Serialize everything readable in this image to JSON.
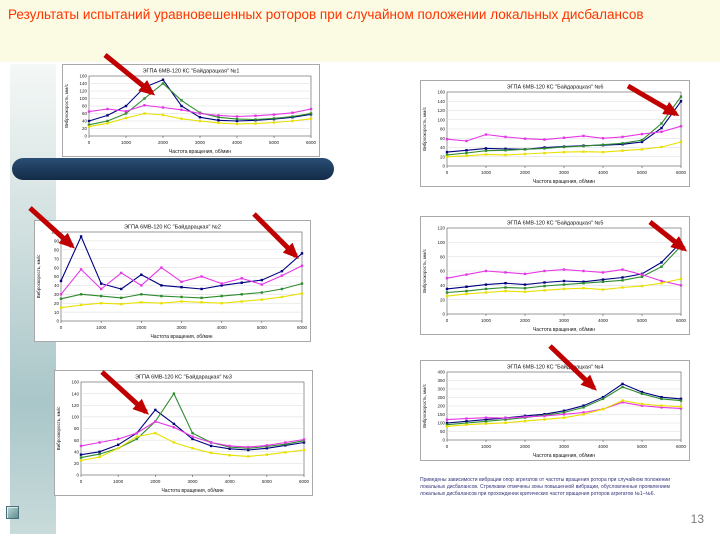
{
  "slide": {
    "title": "Результаты испытаний уравновешенных роторов при случайном положении локальных дисбалансов",
    "page_number": "13",
    "footnote": "Приведены зависимости вибрации опор агрегатов от частоты вращения ротора при случайном положении локальных дисбалансов. Стрелками отмечены зоны повышенной вибрации, обусловленные проявлением локальных дисбалансов при прохождении критических частот вращения роторов агрегатов №1–№6.",
    "accent_color": "#FF3300",
    "arrow_color": "#C00000"
  },
  "chart_data": [
    {
      "type": "line",
      "title": "ЭГПА 6МВ-120 КС \"Байдарацкая\" №1",
      "xlabel": "Частота вращения, об/мин",
      "ylabel": "Виброскорость, мм/с",
      "x": [
        0,
        500,
        1000,
        1500,
        2000,
        2500,
        3000,
        3500,
        4000,
        4500,
        5000,
        5500,
        6000
      ],
      "xticks": [
        0,
        1000,
        2000,
        3000,
        4000,
        5000,
        6000
      ],
      "ylim": [
        0,
        160
      ],
      "ytick_step": 20,
      "series": [
        {
          "color": "#000080",
          "values": [
            40,
            55,
            80,
            130,
            150,
            80,
            50,
            42,
            40,
            42,
            45,
            50,
            58
          ]
        },
        {
          "color": "#2E8B2E",
          "values": [
            30,
            40,
            60,
            100,
            140,
            95,
            62,
            50,
            45,
            44,
            47,
            52,
            60
          ]
        },
        {
          "color": "#E637E6",
          "values": [
            65,
            72,
            66,
            82,
            76,
            70,
            60,
            55,
            52,
            54,
            57,
            62,
            72
          ]
        },
        {
          "color": "#E8E000",
          "values": [
            25,
            34,
            48,
            60,
            56,
            46,
            40,
            35,
            32,
            33,
            36,
            40,
            46
          ]
        }
      ]
    },
    {
      "type": "line",
      "title": "ЭГПА 6МВ-120 КС \"Байдарацкая\" №6",
      "xlabel": "Частота вращения, об/мин",
      "ylabel": "Виброскорость, мм/с",
      "x": [
        0,
        500,
        1000,
        1500,
        2000,
        2500,
        3000,
        3500,
        4000,
        4500,
        5000,
        5500,
        6000
      ],
      "xticks": [
        0,
        1000,
        2000,
        3000,
        4000,
        5000,
        6000
      ],
      "ylim": [
        0,
        160
      ],
      "ytick_step": 20,
      "series": [
        {
          "color": "#000080",
          "values": [
            30,
            34,
            38,
            37,
            36,
            40,
            42,
            44,
            45,
            47,
            52,
            82,
            140
          ]
        },
        {
          "color": "#2E8B2E",
          "values": [
            24,
            28,
            33,
            34,
            36,
            38,
            41,
            43,
            46,
            49,
            56,
            92,
            150
          ]
        },
        {
          "color": "#E637E6",
          "values": [
            58,
            54,
            68,
            63,
            59,
            57,
            61,
            65,
            60,
            63,
            69,
            74,
            86
          ]
        },
        {
          "color": "#E8E000",
          "values": [
            20,
            22,
            25,
            24,
            26,
            28,
            30,
            31,
            30,
            33,
            36,
            41,
            52
          ]
        }
      ]
    },
    {
      "type": "line",
      "title": "ЭГПА 6МВ-120 КС \"Байдарацкая\" №2",
      "xlabel": "Частота вращения, об/мин",
      "ylabel": "Виброскорость, мм/с",
      "x": [
        0,
        500,
        1000,
        1500,
        2000,
        2500,
        3000,
        3500,
        4000,
        4500,
        5000,
        5500,
        6000
      ],
      "xticks": [
        0,
        1000,
        2000,
        3000,
        4000,
        5000,
        6000
      ],
      "ylim": [
        0,
        100
      ],
      "ytick_step": 10,
      "series": [
        {
          "color": "#000080",
          "values": [
            45,
            95,
            42,
            36,
            52,
            40,
            38,
            36,
            40,
            43,
            46,
            56,
            76
          ]
        },
        {
          "color": "#E637E6",
          "values": [
            30,
            58,
            36,
            54,
            40,
            60,
            44,
            50,
            42,
            48,
            41,
            51,
            62
          ]
        },
        {
          "color": "#2E8B2E",
          "values": [
            25,
            30,
            28,
            26,
            30,
            28,
            27,
            26,
            28,
            30,
            32,
            36,
            42
          ]
        },
        {
          "color": "#E8E000",
          "values": [
            15,
            18,
            20,
            19,
            21,
            20,
            22,
            21,
            20,
            22,
            24,
            27,
            31
          ]
        }
      ]
    },
    {
      "type": "line",
      "title": "ЭГПА 6МВ-120 КС \"Байдарацкая\" №5",
      "xlabel": "Частота вращения, об/мин",
      "ylabel": "Виброскорость, мм/с",
      "x": [
        0,
        500,
        1000,
        1500,
        2000,
        2500,
        3000,
        3500,
        4000,
        4500,
        5000,
        5500,
        6000
      ],
      "xticks": [
        0,
        1000,
        2000,
        3000,
        4000,
        5000,
        6000
      ],
      "ylim": [
        0,
        120
      ],
      "ytick_step": 20,
      "series": [
        {
          "color": "#000080",
          "values": [
            35,
            38,
            41,
            43,
            41,
            44,
            46,
            45,
            48,
            51,
            56,
            72,
            100
          ]
        },
        {
          "color": "#2E8B2E",
          "values": [
            30,
            32,
            35,
            37,
            36,
            39,
            41,
            43,
            45,
            47,
            52,
            66,
            95
          ]
        },
        {
          "color": "#E637E6",
          "values": [
            50,
            55,
            60,
            58,
            56,
            60,
            62,
            60,
            58,
            62,
            55,
            46,
            40
          ]
        },
        {
          "color": "#E8E000",
          "values": [
            25,
            28,
            30,
            32,
            31,
            33,
            35,
            36,
            34,
            37,
            39,
            43,
            49
          ]
        }
      ]
    },
    {
      "type": "line",
      "title": "ЭГПА 6МВ-120 КС \"Байдарацкая\" №3",
      "xlabel": "Частота вращения, об/мин",
      "ylabel": "Виброскорость, мм/с",
      "x": [
        0,
        500,
        1000,
        1500,
        2000,
        2500,
        3000,
        3500,
        4000,
        4500,
        5000,
        5500,
        6000
      ],
      "xticks": [
        0,
        1000,
        2000,
        3000,
        4000,
        5000,
        6000
      ],
      "ylim": [
        0,
        160
      ],
      "ytick_step": 20,
      "series": [
        {
          "color": "#000080",
          "values": [
            35,
            40,
            52,
            72,
            112,
            88,
            62,
            50,
            45,
            43,
            46,
            51,
            56
          ]
        },
        {
          "color": "#2E8B2E",
          "values": [
            30,
            36,
            46,
            62,
            92,
            140,
            72,
            56,
            48,
            46,
            49,
            53,
            59
          ]
        },
        {
          "color": "#E637E6",
          "values": [
            50,
            56,
            62,
            72,
            92,
            82,
            66,
            56,
            50,
            48,
            51,
            56,
            61
          ]
        },
        {
          "color": "#E8E000",
          "values": [
            25,
            31,
            46,
            66,
            72,
            56,
            46,
            38,
            34,
            32,
            35,
            39,
            43
          ]
        }
      ]
    },
    {
      "type": "line",
      "title": "ЭГПА 6МВ-120 КС \"Байдарацкая\" №4",
      "xlabel": "Частота вращения, об/мин",
      "ylabel": "Виброскорость, мм/с",
      "x": [
        0,
        500,
        1000,
        1500,
        2000,
        2500,
        3000,
        3500,
        4000,
        4500,
        5000,
        5500,
        6000
      ],
      "xticks": [
        0,
        1000,
        2000,
        3000,
        4000,
        5000,
        6000
      ],
      "ylim": [
        0,
        400
      ],
      "ytick_step": 50,
      "series": [
        {
          "color": "#000080",
          "values": [
            100,
            110,
            120,
            130,
            142,
            152,
            172,
            202,
            252,
            330,
            282,
            252,
            242
          ]
        },
        {
          "color": "#2E8B2E",
          "values": [
            90,
            100,
            110,
            120,
            132,
            146,
            162,
            192,
            242,
            312,
            272,
            242,
            232
          ]
        },
        {
          "color": "#E637E6",
          "values": [
            120,
            126,
            131,
            129,
            136,
            141,
            151,
            162,
            182,
            222,
            202,
            192,
            186
          ]
        },
        {
          "color": "#E8E000",
          "values": [
            80,
            90,
            96,
            101,
            111,
            121,
            131,
            151,
            181,
            232,
            212,
            202,
            196
          ]
        }
      ]
    }
  ]
}
